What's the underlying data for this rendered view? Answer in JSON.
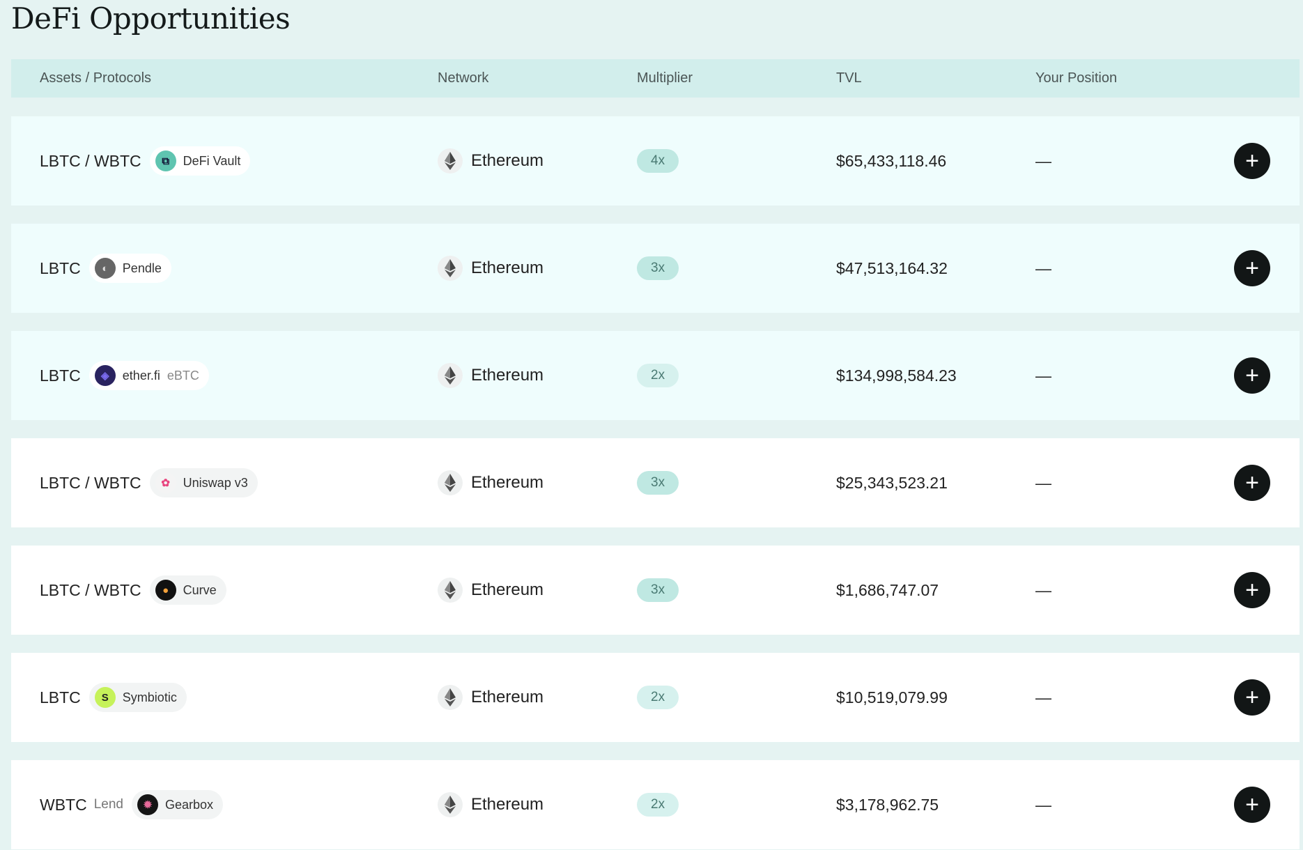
{
  "page": {
    "title": "DeFi Opportunities"
  },
  "colors": {
    "multiplier_high": "#bfe8e2",
    "multiplier_low": "#d6f1ee",
    "button": "#121616"
  },
  "table": {
    "headers": [
      "Assets / Protocols",
      "Network",
      "Multiplier",
      "TVL",
      "Your Position"
    ],
    "rows": [
      {
        "asset": "LBTC / WBTC",
        "sub": "",
        "protocol": "DeFi Vault",
        "protocol_extra": "",
        "icon": "defi-vault-icon",
        "icon_color": "#5fc4b0",
        "network": "Ethereum",
        "multiplier": "4x",
        "tvl": "$65,433,118.46",
        "position": "—"
      },
      {
        "asset": "LBTC",
        "sub": "",
        "protocol": "Pendle",
        "protocol_extra": "",
        "icon": "pendle-icon",
        "icon_color": "#666666",
        "network": "Ethereum",
        "multiplier": "3x",
        "tvl": "$47,513,164.32",
        "position": "—"
      },
      {
        "asset": "LBTC",
        "sub": "",
        "protocol": "ether.fi",
        "protocol_extra": "eBTC",
        "icon": "etherfi-icon",
        "icon_color": "#2a2360",
        "network": "Ethereum",
        "multiplier": "2x",
        "tvl": "$134,998,584.23",
        "position": "—"
      },
      {
        "asset": "LBTC / WBTC",
        "sub": "",
        "protocol": "Uniswap v3",
        "protocol_extra": "",
        "icon": "uniswap-icon",
        "icon_color": "#f4f4f4",
        "network": "Ethereum",
        "multiplier": "3x",
        "tvl": "$25,343,523.21",
        "position": "—"
      },
      {
        "asset": "LBTC / WBTC",
        "sub": "",
        "protocol": "Curve",
        "protocol_extra": "",
        "icon": "curve-icon",
        "icon_color": "#111111",
        "network": "Ethereum",
        "multiplier": "3x",
        "tvl": "$1,686,747.07",
        "position": "—"
      },
      {
        "asset": "LBTC",
        "sub": "",
        "protocol": "Symbiotic",
        "protocol_extra": "",
        "icon": "symbiotic-icon",
        "icon_color": "#c6f25a",
        "network": "Ethereum",
        "multiplier": "2x",
        "tvl": "$10,519,079.99",
        "position": "—"
      },
      {
        "asset": "WBTC",
        "sub": "Lend",
        "protocol": "Gearbox",
        "protocol_extra": "",
        "icon": "gearbox-icon",
        "icon_color": "#151515",
        "network": "Ethereum",
        "multiplier": "2x",
        "tvl": "$3,178,962.75",
        "position": "—"
      }
    ]
  }
}
